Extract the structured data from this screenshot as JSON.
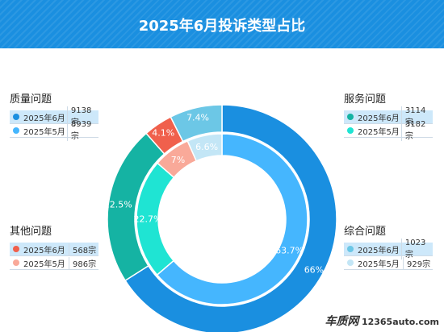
{
  "title": "2025年6月投诉类型占比",
  "legends": [
    {
      "title": "质量问题",
      "rows": [
        {
          "label": "2025年6月",
          "value": "9138宗",
          "color": "#1a8fe0"
        },
        {
          "label": "2025年5月",
          "value": "8939宗",
          "color": "#45b6fe"
        }
      ]
    },
    {
      "title": "服务问题",
      "rows": [
        {
          "label": "2025年6月",
          "value": "3114宗",
          "color": "#15b3a3"
        },
        {
          "label": "2025年5月",
          "value": "3182宗",
          "color": "#1fe4d3"
        }
      ]
    },
    {
      "title": "其他问题",
      "rows": [
        {
          "label": "2025年6月",
          "value": "568宗",
          "color": "#f0604c"
        },
        {
          "label": "2025年5月",
          "value": "986宗",
          "color": "#f9a999"
        }
      ]
    },
    {
      "title": "综合问题",
      "rows": [
        {
          "label": "2025年6月",
          "value": "1023宗",
          "color": "#6cc7e6"
        },
        {
          "label": "2025年5月",
          "value": "929宗",
          "color": "#c3e6f6"
        }
      ]
    }
  ],
  "chart_data": {
    "type": "pie",
    "title": "2025年6月投诉类型占比",
    "categories": [
      "质量问题",
      "服务问题",
      "其他问题",
      "综合问题"
    ],
    "series": [
      {
        "name": "2025年6月",
        "ring": "outer",
        "values": [
          66,
          22.5,
          4.1,
          7.4
        ],
        "labels": [
          "66%",
          "22.5%",
          "4.1%",
          "7.4%"
        ],
        "colors": [
          "#1a8fe0",
          "#15b3a3",
          "#f0604c",
          "#6cc7e6"
        ]
      },
      {
        "name": "2025年5月",
        "ring": "inner",
        "values": [
          63.7,
          22.7,
          7,
          6.6
        ],
        "labels": [
          "63.7%",
          "22.7%",
          "7%",
          "6.6%"
        ],
        "colors": [
          "#45b6fe",
          "#1fe4d3",
          "#f9a999",
          "#c3e6f6"
        ]
      }
    ]
  },
  "watermark": {
    "logo": "车质网",
    "url": "12365auto.com"
  }
}
